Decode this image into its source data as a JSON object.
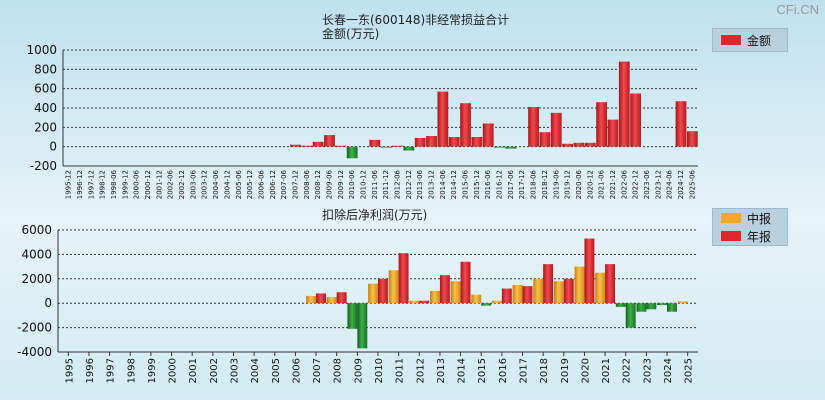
{
  "watermark": "CFi.CN",
  "colors": {
    "red": "#e0262b",
    "green": "#1f8f2a",
    "orange": "#f5a623",
    "grid": "#555555"
  },
  "chart_data": [
    {
      "type": "bar",
      "title": "长春一东(600148)非经常损益合计",
      "ylabel": "金额(万元)",
      "ylim": [
        -200,
        1000
      ],
      "yticks": [
        1000,
        800,
        600,
        400,
        200,
        0,
        -200
      ],
      "legend": [
        {
          "name": "金额",
          "color": "#e0262b"
        }
      ],
      "categories": [
        "1995-12",
        "1996-12",
        "1997-12",
        "1998-12",
        "1998-06",
        "1999-12",
        "2000-06",
        "2000-12",
        "2001-12",
        "2002-06",
        "2002-12",
        "2003-06",
        "2003-12",
        "2004-06",
        "2004-12",
        "2005-06",
        "2005-12",
        "2006-06",
        "2006-12",
        "2007-06",
        "2007-12",
        "2008-06",
        "2008-12",
        "2009-06",
        "2009-12",
        "2010-06",
        "2010-12",
        "2011-06",
        "2011-12",
        "2012-06",
        "2012-12",
        "2013-06",
        "2013-12",
        "2014-06",
        "2014-12",
        "2015-06",
        "2015-12",
        "2016-06",
        "2016-12",
        "2017-06",
        "2017-12",
        "2018-06",
        "2018-12",
        "2019-06",
        "2019-12",
        "2020-06",
        "2020-12",
        "2021-06",
        "2021-12",
        "2022-06",
        "2022-12",
        "2023-06",
        "2023-12",
        "2024-06",
        "2024-12",
        "2025-06"
      ],
      "values": [
        0,
        0,
        0,
        0,
        0,
        0,
        0,
        0,
        0,
        0,
        0,
        0,
        0,
        0,
        0,
        0,
        0,
        0,
        0,
        0,
        20,
        10,
        50,
        120,
        10,
        -120,
        0,
        70,
        -10,
        10,
        -40,
        90,
        110,
        570,
        100,
        450,
        100,
        240,
        -10,
        -20,
        0,
        410,
        150,
        350,
        30,
        40,
        40,
        460,
        280,
        880,
        550,
        0,
        0,
        0,
        470,
        160
      ]
    },
    {
      "type": "bar",
      "title": "扣除后净利润(万元)",
      "ylim": [
        -4000,
        6000
      ],
      "yticks": [
        6000,
        4000,
        2000,
        0,
        -2000,
        -4000
      ],
      "legend": [
        {
          "name": "中报",
          "color": "#f5a623"
        },
        {
          "name": "年报",
          "color": "#e0262b"
        }
      ],
      "categories": [
        "1995",
        "1996",
        "1997",
        "1998",
        "1999",
        "2000",
        "2001",
        "2002",
        "2003",
        "2004",
        "2005",
        "2006",
        "2007",
        "2008",
        "2009",
        "2010",
        "2011",
        "2012",
        "2013",
        "2014",
        "2015",
        "2016",
        "2017",
        "2018",
        "2019",
        "2020",
        "2021",
        "2022",
        "2023",
        "2024",
        "2025"
      ],
      "series": [
        {
          "name": "中报",
          "values": [
            0,
            0,
            0,
            0,
            0,
            0,
            0,
            0,
            0,
            0,
            0,
            0,
            600,
            500,
            -2100,
            1600,
            2700,
            200,
            1000,
            1800,
            700,
            200,
            1500,
            2000,
            1800,
            3000,
            2500,
            -300,
            -700,
            -150,
            150
          ]
        },
        {
          "name": "年报",
          "values": [
            0,
            0,
            0,
            0,
            0,
            0,
            0,
            0,
            0,
            0,
            0,
            0,
            800,
            900,
            -3700,
            2000,
            4100,
            200,
            2300,
            3400,
            -200,
            1200,
            1400,
            3200,
            2000,
            5300,
            3200,
            -2000,
            -500,
            -700,
            null
          ]
        }
      ]
    }
  ]
}
